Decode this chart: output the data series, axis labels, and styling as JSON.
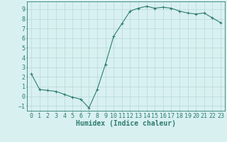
{
  "x": [
    0,
    1,
    2,
    3,
    4,
    5,
    6,
    7,
    8,
    9,
    10,
    11,
    12,
    13,
    14,
    15,
    16,
    17,
    18,
    19,
    20,
    21,
    22,
    23
  ],
  "y": [
    2.3,
    0.7,
    0.6,
    0.5,
    0.2,
    -0.1,
    -0.3,
    -1.2,
    0.7,
    3.3,
    6.2,
    7.5,
    8.8,
    9.1,
    9.3,
    9.1,
    9.2,
    9.1,
    8.8,
    8.6,
    8.5,
    8.6,
    8.1,
    7.6
  ],
  "line_color": "#2e7d6e",
  "marker": "+",
  "marker_size": 3,
  "bg_color": "#d8f0f0",
  "grid_color": "#b8d8d8",
  "xlabel": "Humidex (Indice chaleur)",
  "xlabel_fontsize": 7,
  "tick_fontsize": 6,
  "ylim": [
    -1.5,
    9.8
  ],
  "xlim": [
    -0.5,
    23.5
  ],
  "yticks": [
    -1,
    0,
    1,
    2,
    3,
    4,
    5,
    6,
    7,
    8,
    9
  ],
  "xticks": [
    0,
    1,
    2,
    3,
    4,
    5,
    6,
    7,
    8,
    9,
    10,
    11,
    12,
    13,
    14,
    15,
    16,
    17,
    18,
    19,
    20,
    21,
    22,
    23
  ]
}
